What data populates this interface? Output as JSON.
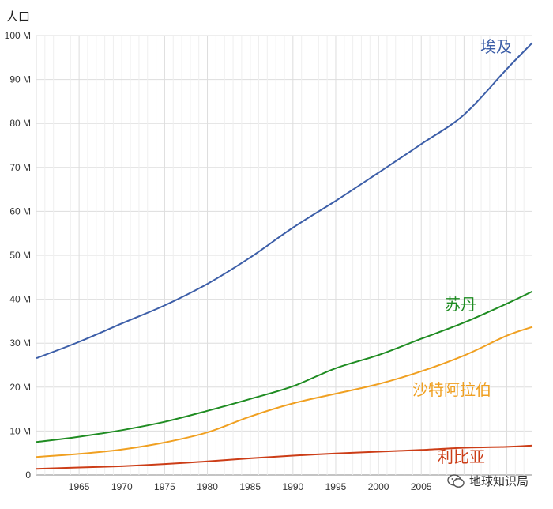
{
  "chart_data": {
    "type": "line",
    "ylabel": "人口",
    "xlabel": "",
    "title": "",
    "xlim": [
      1960,
      2018
    ],
    "ylim": [
      0,
      100
    ],
    "x_ticks": [
      1965,
      1970,
      1975,
      1980,
      1985,
      1990,
      1995,
      2000,
      2005
    ],
    "y_ticks": [
      {
        "value": 0,
        "label": "0"
      },
      {
        "value": 10,
        "label": "10 M"
      },
      {
        "value": 20,
        "label": "20 M"
      },
      {
        "value": 30,
        "label": "30 M"
      },
      {
        "value": 40,
        "label": "40 M"
      },
      {
        "value": 50,
        "label": "50 M"
      },
      {
        "value": 60,
        "label": "60 M"
      },
      {
        "value": 70,
        "label": "70 M"
      },
      {
        "value": 80,
        "label": "80 M"
      },
      {
        "value": 90,
        "label": "90 M"
      },
      {
        "value": 100,
        "label": "100 M"
      }
    ],
    "grid": true,
    "x": [
      1960,
      1965,
      1970,
      1975,
      1980,
      1985,
      1990,
      1995,
      2000,
      2005,
      2010,
      2015,
      2018
    ],
    "series": [
      {
        "name": "埃及",
        "color": "#3c5ea8",
        "values": [
          26.6,
          30.3,
          34.5,
          38.6,
          43.5,
          49.5,
          56.3,
          62.4,
          68.8,
          75.3,
          82.0,
          92.4,
          98.4
        ]
      },
      {
        "name": "苏丹",
        "color": "#1f8c22",
        "values": [
          7.5,
          8.7,
          10.2,
          12.1,
          14.6,
          17.3,
          20.2,
          24.3,
          27.3,
          31.0,
          34.7,
          39.0,
          41.8
        ]
      },
      {
        "name": "沙特阿拉伯",
        "color": "#f0a021",
        "values": [
          4.1,
          4.8,
          5.8,
          7.4,
          9.7,
          13.3,
          16.3,
          18.5,
          20.7,
          23.6,
          27.2,
          31.7,
          33.7
        ]
      },
      {
        "name": "利比亚",
        "color": "#cc3d17",
        "values": [
          1.4,
          1.7,
          2.0,
          2.5,
          3.1,
          3.8,
          4.4,
          4.9,
          5.3,
          5.7,
          6.2,
          6.4,
          6.7
        ]
      }
    ]
  },
  "watermark": {
    "text": "地球知识局"
  }
}
